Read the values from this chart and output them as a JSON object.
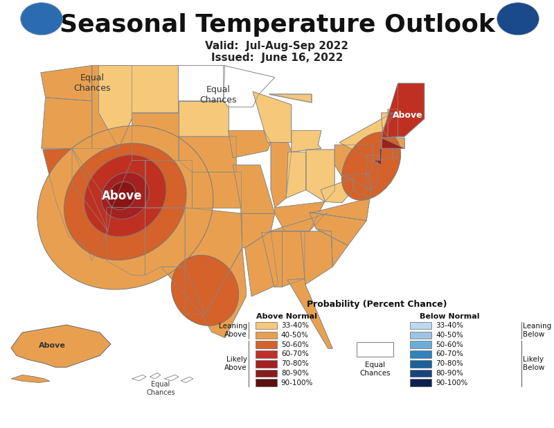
{
  "title": "Seasonal Temperature Outlook",
  "subtitle1": "Valid:  Jul-Aug-Sep 2022",
  "subtitle2": "Issued:  June 16, 2022",
  "title_fontsize": 26,
  "subtitle_fontsize": 11,
  "background_color": "#ffffff",
  "legend_above_labels": [
    "33-40%",
    "40-50%",
    "50-60%",
    "60-70%",
    "70-80%",
    "80-90%",
    "90-100%"
  ],
  "legend_below_labels": [
    "33-40%",
    "40-50%",
    "50-60%",
    "60-70%",
    "70-80%",
    "80-90%",
    "90-100%"
  ],
  "legend_above_colors": [
    "#F5C87A",
    "#E8A050",
    "#D4622A",
    "#C0302B",
    "#A52020",
    "#8B1A1A",
    "#5C1010"
  ],
  "legend_below_colors": [
    "#BDD7EE",
    "#9DC3E6",
    "#6AAED6",
    "#3182BD",
    "#1C6099",
    "#154580",
    "#0D2050"
  ],
  "c_light_orange": "#F5C87A",
  "c_orange": "#E8A050",
  "c_dark_orange": "#D4622A",
  "c_red": "#C03020",
  "c_dark_red": "#8B1515",
  "c_ne_dark": "#C03020",
  "c_ne_red": "#9B2020",
  "ocean_color": "#D0E8F5",
  "state_edge": "#888888",
  "country_edge": "#444444"
}
